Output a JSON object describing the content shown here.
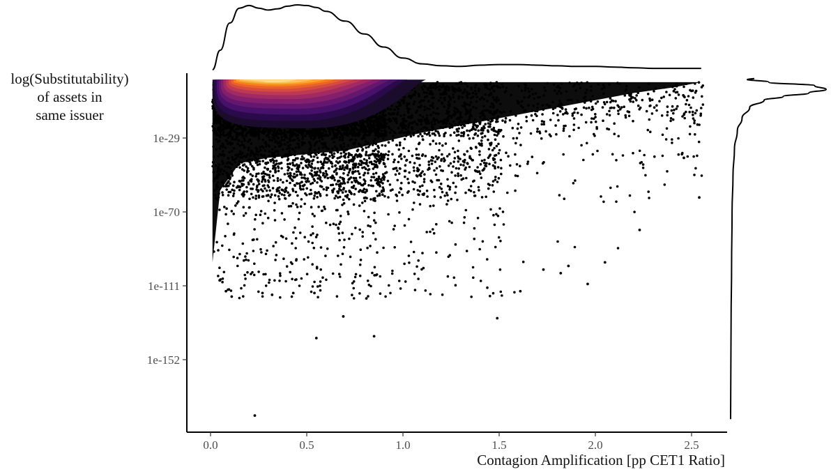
{
  "chart_data": {
    "type": "scatter",
    "subtype": "scatter with 2D density contours and marginal density curves",
    "xlabel": "Contagion Amplification [pp CET1 Ratio]",
    "ylabel_lines": [
      "log(Substitutability)",
      "of assets in",
      "same issuer"
    ],
    "x_ticks": [
      "0.0",
      "0.5",
      "1.0",
      "1.5",
      "2.0",
      "2.5"
    ],
    "x_tick_values": [
      0.0,
      0.5,
      1.0,
      1.5,
      2.0,
      2.5
    ],
    "y_ticks": [
      "1e-29",
      "1e-70",
      "1e-111",
      "1e-152"
    ],
    "y_tick_exponents": [
      -29,
      -70,
      -111,
      -152
    ],
    "xlim": [
      -0.11,
      2.7
    ],
    "y_exponent_lim": [
      -190,
      8
    ],
    "y_scale": "log10",
    "grid": false,
    "legend": "none",
    "density_palette": "inferno",
    "colors": {
      "points": "#000000",
      "density_low": "#2a0a4a",
      "density_mid": "#b5367a",
      "density_high": "#fcd27b",
      "axis": "#000000"
    },
    "outlier_points": [
      {
        "x": 0.23,
        "y_exp": -183
      },
      {
        "x": 0.55,
        "y_exp": -140
      },
      {
        "x": 0.85,
        "y_exp": -139
      },
      {
        "x": 0.69,
        "y_exp": -128
      },
      {
        "x": 1.49,
        "y_exp": -129
      },
      {
        "x": 0.11,
        "y_exp": -117
      },
      {
        "x": 0.08,
        "y_exp": -114
      },
      {
        "x": 0.27,
        "y_exp": -115
      },
      {
        "x": 0.32,
        "y_exp": -116
      },
      {
        "x": 0.43,
        "y_exp": -115
      },
      {
        "x": 0.54,
        "y_exp": -115
      },
      {
        "x": 0.81,
        "y_exp": -118
      },
      {
        "x": 1.61,
        "y_exp": -114
      },
      {
        "x": 1.96,
        "y_exp": -110
      },
      {
        "x": 2.54,
        "y_exp": -62
      },
      {
        "x": 2.46,
        "y_exp": -40
      },
      {
        "x": 2.45,
        "y_exp": -38
      },
      {
        "x": 1.86,
        "y_exp": -100
      },
      {
        "x": 1.73,
        "y_exp": -102
      },
      {
        "x": 1.82,
        "y_exp": -104
      },
      {
        "x": 2.05,
        "y_exp": -98
      },
      {
        "x": 2.23,
        "y_exp": -80
      }
    ],
    "x_marginal_density": {
      "x": [
        0.01,
        0.05,
        0.1,
        0.15,
        0.2,
        0.25,
        0.3,
        0.35,
        0.4,
        0.45,
        0.5,
        0.55,
        0.6,
        0.7,
        0.8,
        0.9,
        1.0,
        1.1,
        1.2,
        1.3,
        1.4,
        1.5,
        1.6,
        1.7,
        1.8,
        1.9,
        2.0,
        2.1,
        2.2,
        2.3,
        2.4,
        2.5,
        2.55
      ],
      "density": [
        0.0,
        0.3,
        0.72,
        0.95,
        0.99,
        0.95,
        0.92,
        0.94,
        0.98,
        1.0,
        0.99,
        0.96,
        0.9,
        0.75,
        0.55,
        0.35,
        0.18,
        0.09,
        0.06,
        0.05,
        0.07,
        0.08,
        0.08,
        0.07,
        0.06,
        0.05,
        0.05,
        0.04,
        0.03,
        0.02,
        0.02,
        0.02,
        0.02
      ]
    },
    "y_marginal_density": {
      "y_exp": [
        4,
        2,
        0,
        -2,
        -4,
        -6,
        -8,
        -12,
        -18,
        -25,
        -35,
        -50,
        -70,
        -100,
        -130,
        -160,
        -185
      ],
      "density": [
        0.02,
        0.4,
        0.88,
        1.0,
        0.82,
        0.55,
        0.35,
        0.2,
        0.12,
        0.07,
        0.04,
        0.025,
        0.015,
        0.01,
        0.005,
        0.002,
        0.0
      ]
    }
  }
}
